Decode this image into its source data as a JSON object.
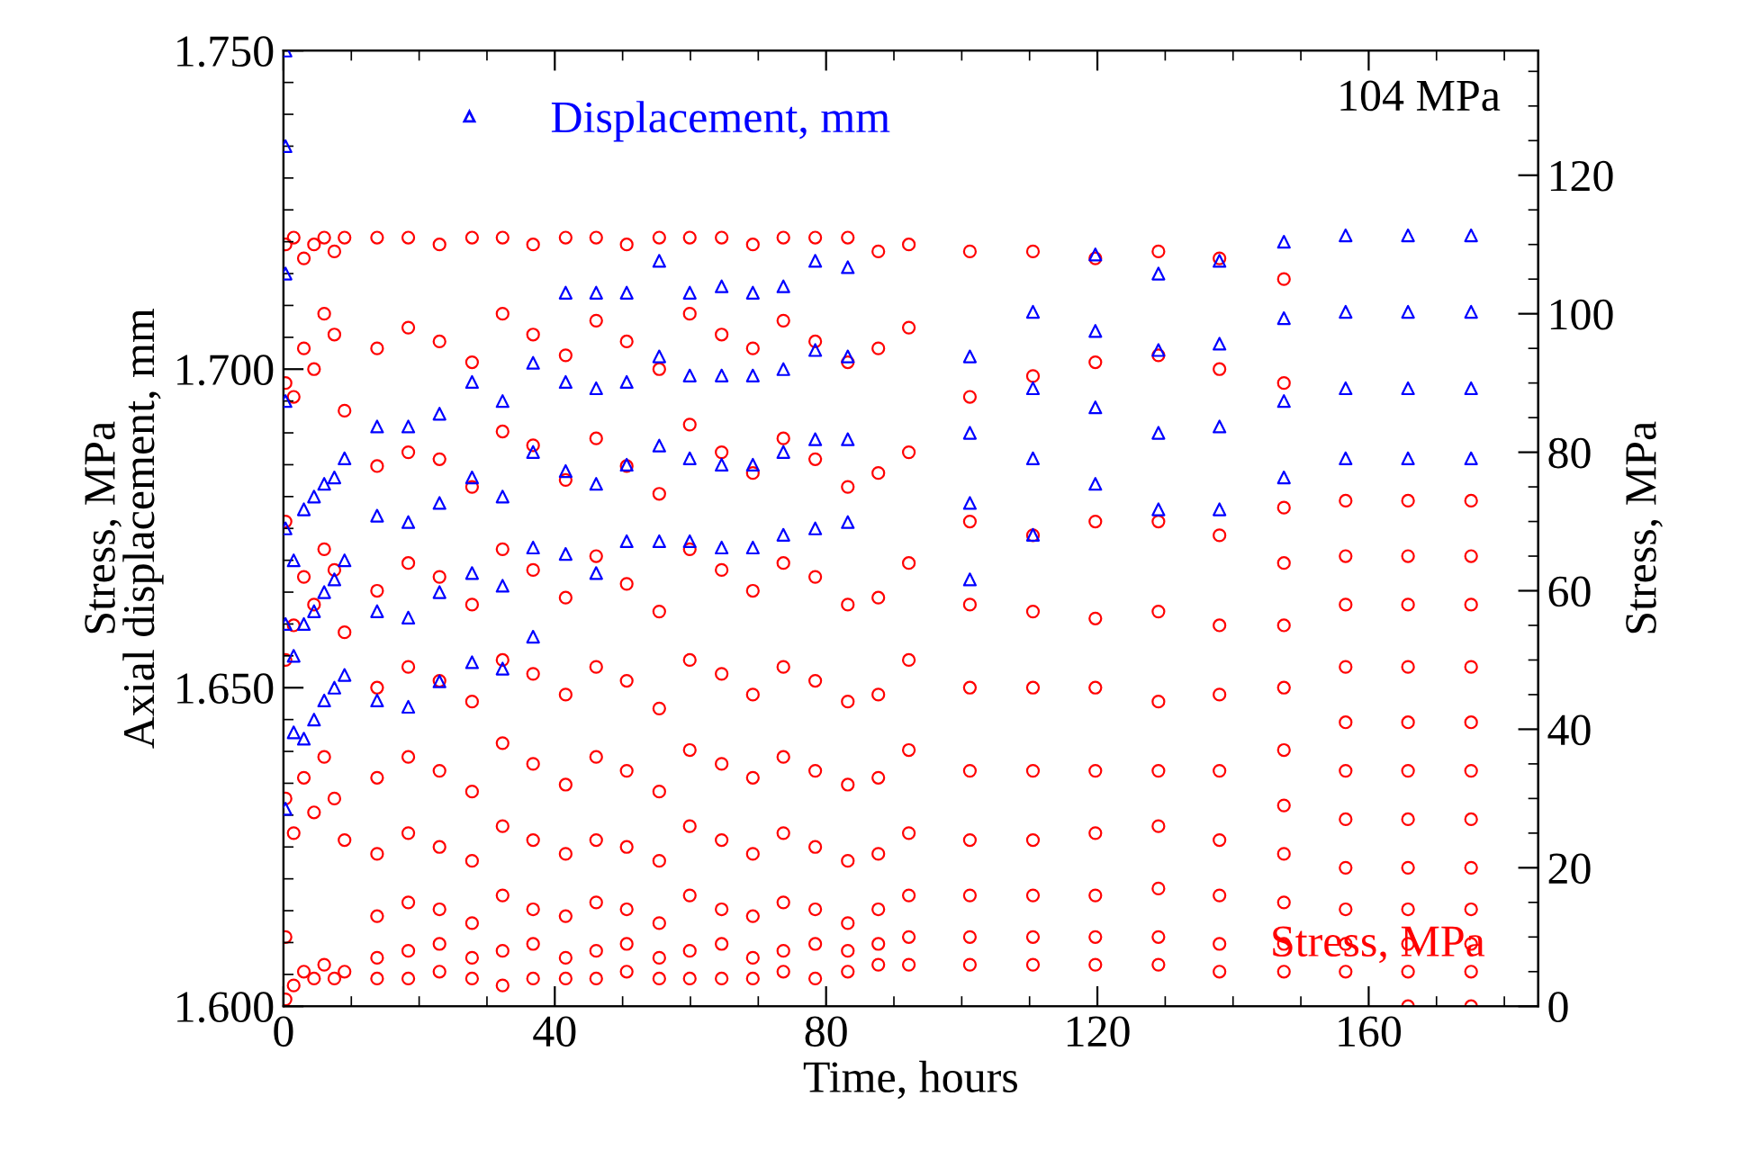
{
  "chart_data": {
    "type": "scatter",
    "xlabel": "Time, hours",
    "ylabel": "Stress, MPa\nAxial displacement, mm",
    "y2label": "Stress, MPa",
    "annotations": [
      "104 MPa"
    ],
    "xlim": [
      0,
      185
    ],
    "xticks": [
      0,
      40,
      80,
      120,
      160
    ],
    "ylim": [
      1.6,
      1.75
    ],
    "yticks": [
      {
        "value": 1.6,
        "label": "1.600"
      },
      {
        "value": 1.65,
        "label": "1.650"
      },
      {
        "value": 1.7,
        "label": "1.700"
      },
      {
        "value": 1.75,
        "label": "1.750"
      }
    ],
    "y2lim": [
      0,
      138
    ],
    "y2ticks": [
      0,
      20,
      40,
      60,
      80,
      100,
      120
    ],
    "grid": false,
    "legend": "top left",
    "series": [
      {
        "name": "Stress, MPa",
        "color": "#ff0000",
        "marker": "circle",
        "axis": "y2",
        "x": [
          0.3,
          0.3,
          0.3,
          0.3,
          0.3,
          0.3,
          0.3,
          1.5,
          1.5,
          1.5,
          1.5,
          1.5,
          3,
          3,
          3,
          3,
          3,
          4.5,
          4.5,
          4.5,
          4.5,
          4.5,
          6,
          6,
          6,
          6,
          6,
          7.5,
          7.5,
          7.5,
          7.5,
          7.5,
          9,
          9,
          9,
          9,
          9,
          13.8,
          13.8,
          13.8,
          13.8,
          13.8,
          13.8,
          13.8,
          13.8,
          13.8,
          13.8,
          18.4,
          18.4,
          18.4,
          18.4,
          18.4,
          18.4,
          18.4,
          18.4,
          18.4,
          18.4,
          23.0,
          23.0,
          23.0,
          23.0,
          23.0,
          23.0,
          23.0,
          23.0,
          23.0,
          23.0,
          27.8,
          27.8,
          27.8,
          27.8,
          27.8,
          27.8,
          27.8,
          27.8,
          27.8,
          27.8,
          32.3,
          32.3,
          32.3,
          32.3,
          32.3,
          32.3,
          32.3,
          32.3,
          32.3,
          32.3,
          36.8,
          36.8,
          36.8,
          36.8,
          36.8,
          36.8,
          36.8,
          36.8,
          36.8,
          36.8,
          41.6,
          41.6,
          41.6,
          41.6,
          41.6,
          41.6,
          41.6,
          41.6,
          41.6,
          41.6,
          46.1,
          46.1,
          46.1,
          46.1,
          46.1,
          46.1,
          46.1,
          46.1,
          46.1,
          46.1,
          50.6,
          50.6,
          50.6,
          50.6,
          50.6,
          50.6,
          50.6,
          50.6,
          50.6,
          50.6,
          55.4,
          55.4,
          55.4,
          55.4,
          55.4,
          55.4,
          55.4,
          55.4,
          55.4,
          55.4,
          59.9,
          59.9,
          59.9,
          59.9,
          59.9,
          59.9,
          59.9,
          59.9,
          59.9,
          59.9,
          64.6,
          64.6,
          64.6,
          64.6,
          64.6,
          64.6,
          64.6,
          64.6,
          64.6,
          64.6,
          69.2,
          69.2,
          69.2,
          69.2,
          69.2,
          69.2,
          69.2,
          69.2,
          69.2,
          69.2,
          73.7,
          73.7,
          73.7,
          73.7,
          73.7,
          73.7,
          73.7,
          73.7,
          73.7,
          73.7,
          78.4,
          78.4,
          78.4,
          78.4,
          78.4,
          78.4,
          78.4,
          78.4,
          78.4,
          78.4,
          83.2,
          83.2,
          83.2,
          83.2,
          83.2,
          83.2,
          83.2,
          83.2,
          83.2,
          83.2,
          87.7,
          87.7,
          87.7,
          87.7,
          87.7,
          87.7,
          87.7,
          87.7,
          87.7,
          87.7,
          92.2,
          92.2,
          92.2,
          92.2,
          92.2,
          92.2,
          92.2,
          92.2,
          92.2,
          92.2,
          101.2,
          101.2,
          101.2,
          101.2,
          101.2,
          101.2,
          101.2,
          101.2,
          101.2,
          101.2,
          110.5,
          110.5,
          110.5,
          110.5,
          110.5,
          110.5,
          110.5,
          110.5,
          110.5,
          110.5,
          119.7,
          119.7,
          119.7,
          119.7,
          119.7,
          119.7,
          119.7,
          119.7,
          119.7,
          119.7,
          129.0,
          129.0,
          129.0,
          129.0,
          129.0,
          129.0,
          129.0,
          129.0,
          129.0,
          129.0,
          138.0,
          138.0,
          138.0,
          138.0,
          138.0,
          138.0,
          138.0,
          138.0,
          138.0,
          138.0,
          147.5,
          147.5,
          147.5,
          147.5,
          147.5,
          147.5,
          147.5,
          147.5,
          147.5,
          147.5,
          147.5,
          147.5,
          156.6,
          156.6,
          156.6,
          156.6,
          156.6,
          156.6,
          156.6,
          156.6,
          156.6,
          156.6,
          156.6,
          165.8,
          165.8,
          165.8,
          165.8,
          165.8,
          165.8,
          165.8,
          165.8,
          165.8,
          165.8,
          165.8,
          165.8,
          175.1,
          175.1,
          175.1,
          175.1,
          175.1,
          175.1,
          175.1,
          175.1,
          175.1,
          175.1,
          175.1,
          175.1
        ],
        "values": [
          1,
          10,
          30,
          50,
          70,
          90,
          110,
          3,
          25,
          55,
          88,
          111,
          5,
          33,
          62,
          95,
          108,
          4,
          28,
          58,
          92,
          110,
          6,
          36,
          66,
          100,
          111,
          4,
          30,
          63,
          97,
          109,
          5,
          24,
          54,
          86,
          111,
          4,
          7,
          13,
          22,
          33,
          46,
          60,
          78,
          95,
          111,
          4,
          8,
          15,
          25,
          36,
          49,
          64,
          80,
          98,
          111,
          5,
          9,
          14,
          23,
          34,
          47,
          62,
          79,
          96,
          110,
          4,
          7,
          12,
          21,
          31,
          44,
          58,
          75,
          93,
          111,
          3,
          8,
          16,
          26,
          38,
          50,
          66,
          83,
          100,
          111,
          4,
          9,
          14,
          24,
          35,
          48,
          63,
          81,
          97,
          110,
          4,
          7,
          13,
          22,
          32,
          45,
          59,
          76,
          94,
          111,
          4,
          8,
          15,
          24,
          36,
          49,
          65,
          82,
          99,
          111,
          5,
          9,
          14,
          23,
          34,
          47,
          61,
          78,
          96,
          110,
          4,
          7,
          12,
          21,
          31,
          43,
          57,
          74,
          92,
          111,
          4,
          8,
          16,
          26,
          37,
          50,
          66,
          84,
          100,
          111,
          4,
          9,
          14,
          24,
          35,
          48,
          63,
          80,
          97,
          111,
          4,
          7,
          13,
          22,
          33,
          45,
          60,
          77,
          95,
          110,
          5,
          8,
          15,
          25,
          36,
          49,
          64,
          82,
          99,
          111,
          4,
          9,
          14,
          23,
          34,
          47,
          62,
          79,
          96,
          111,
          5,
          8,
          12,
          21,
          32,
          44,
          58,
          75,
          93,
          111,
          6,
          9,
          14,
          22,
          33,
          45,
          59,
          77,
          95,
          109,
          6,
          10,
          16,
          25,
          37,
          50,
          64,
          80,
          98,
          110,
          6,
          10,
          16,
          24,
          34,
          46,
          58,
          70,
          88,
          109,
          6,
          10,
          16,
          24,
          34,
          46,
          57,
          68,
          91,
          109,
          6,
          10,
          16,
          25,
          34,
          46,
          56,
          70,
          93,
          108,
          6,
          10,
          17,
          26,
          34,
          44,
          57,
          70,
          94,
          109,
          5,
          9,
          16,
          24,
          34,
          45,
          55,
          68,
          92,
          108,
          5,
          9,
          15,
          22,
          29,
          37,
          46,
          55,
          64,
          72,
          90,
          105,
          5,
          9,
          14,
          20,
          27,
          34,
          41,
          49,
          58,
          65,
          73,
          0,
          5,
          9,
          14,
          20,
          27,
          34,
          41,
          49,
          58,
          65,
          73,
          0,
          5,
          9,
          14,
          20,
          27,
          34,
          41,
          49,
          58,
          65,
          73
        ]
      },
      {
        "name": "Displacement, mm",
        "color": "#0000ff",
        "marker": "triangle",
        "x": [
          0.3,
          0.3,
          0.3,
          0.3,
          0.3,
          0.3,
          0.3,
          1.5,
          1.5,
          1.5,
          3,
          3,
          3,
          4.5,
          4.5,
          4.5,
          6,
          6,
          6,
          7.5,
          7.5,
          7.5,
          9,
          9,
          9,
          13.8,
          13.8,
          13.8,
          13.8,
          18.4,
          18.4,
          18.4,
          18.4,
          23.0,
          23.0,
          23.0,
          23.0,
          27.8,
          27.8,
          27.8,
          27.8,
          32.3,
          32.3,
          32.3,
          32.3,
          36.8,
          36.8,
          36.8,
          36.8,
          41.6,
          41.6,
          41.6,
          41.6,
          46.1,
          46.1,
          46.1,
          46.1,
          50.6,
          50.6,
          50.6,
          50.6,
          55.4,
          55.4,
          55.4,
          55.4,
          59.9,
          59.9,
          59.9,
          59.9,
          64.6,
          64.6,
          64.6,
          64.6,
          69.2,
          69.2,
          69.2,
          69.2,
          73.7,
          73.7,
          73.7,
          73.7,
          78.4,
          78.4,
          78.4,
          78.4,
          83.2,
          83.2,
          83.2,
          83.2,
          101.2,
          101.2,
          101.2,
          101.2,
          110.5,
          110.5,
          110.5,
          110.5,
          119.7,
          119.7,
          119.7,
          119.7,
          129.0,
          129.0,
          129.0,
          129.0,
          138.0,
          138.0,
          138.0,
          138.0,
          147.5,
          147.5,
          147.5,
          147.5,
          156.6,
          156.6,
          156.6,
          156.6,
          165.8,
          165.8,
          165.8,
          165.8,
          175.1,
          175.1,
          175.1,
          175.1
        ],
        "values": [
          1.75,
          1.735,
          1.715,
          1.695,
          1.675,
          1.66,
          1.631,
          1.67,
          1.655,
          1.643,
          1.678,
          1.66,
          1.642,
          1.68,
          1.662,
          1.645,
          1.682,
          1.665,
          1.648,
          1.683,
          1.667,
          1.65,
          1.686,
          1.67,
          1.652,
          1.691,
          1.677,
          1.662,
          1.648,
          1.691,
          1.676,
          1.661,
          1.647,
          1.693,
          1.679,
          1.665,
          1.651,
          1.698,
          1.683,
          1.668,
          1.654,
          1.695,
          1.68,
          1.666,
          1.653,
          1.701,
          1.687,
          1.672,
          1.658,
          1.712,
          1.698,
          1.684,
          1.671,
          1.712,
          1.697,
          1.682,
          1.668,
          1.712,
          1.698,
          1.685,
          1.673,
          1.717,
          1.702,
          1.688,
          1.673,
          1.712,
          1.699,
          1.686,
          1.673,
          1.713,
          1.699,
          1.685,
          1.672,
          1.712,
          1.699,
          1.685,
          1.672,
          1.713,
          1.7,
          1.687,
          1.674,
          1.717,
          1.703,
          1.689,
          1.675,
          1.716,
          1.702,
          1.689,
          1.676,
          1.702,
          1.69,
          1.679,
          1.667,
          1.709,
          1.697,
          1.686,
          1.674,
          1.718,
          1.706,
          1.694,
          1.682,
          1.715,
          1.703,
          1.69,
          1.678,
          1.717,
          1.704,
          1.691,
          1.678,
          1.72,
          1.708,
          1.695,
          1.683,
          1.721,
          1.709,
          1.697,
          1.686,
          1.721,
          1.709,
          1.697,
          1.686,
          1.721,
          1.709,
          1.697,
          1.686
        ]
      }
    ]
  }
}
